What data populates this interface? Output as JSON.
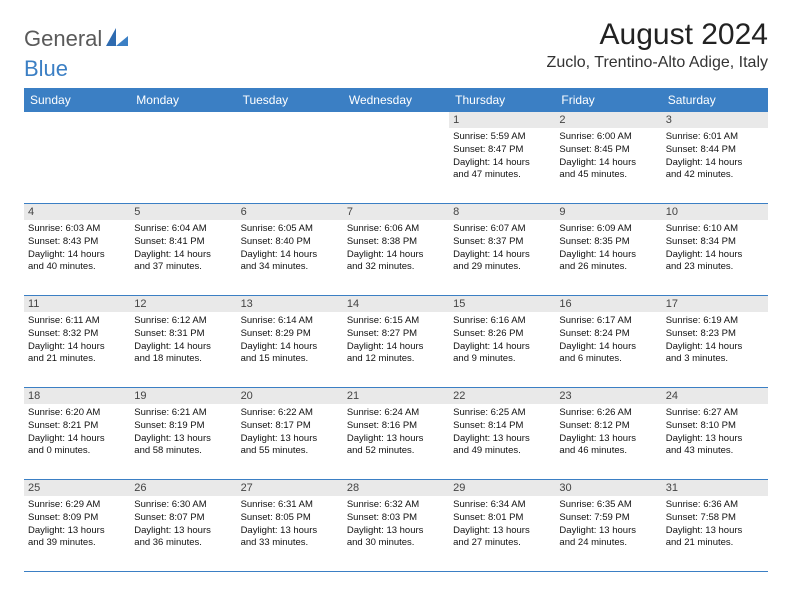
{
  "logo": {
    "word1": "General",
    "word2": "Blue"
  },
  "title": "August 2024",
  "subtitle": "Zuclo, Trentino-Alto Adige, Italy",
  "colors": {
    "header_bg": "#3b7fc4",
    "header_fg": "#ffffff",
    "daynum_bg": "#e9e9e9",
    "border": "#3b7fc4",
    "logo_gray": "#5a5a5a",
    "logo_blue": "#3b7fc4"
  },
  "weekdays": [
    "Sunday",
    "Monday",
    "Tuesday",
    "Wednesday",
    "Thursday",
    "Friday",
    "Saturday"
  ],
  "leading_blanks": 4,
  "days": [
    {
      "n": "1",
      "sunrise": "Sunrise: 5:59 AM",
      "sunset": "Sunset: 8:47 PM",
      "daylight1": "Daylight: 14 hours",
      "daylight2": "and 47 minutes."
    },
    {
      "n": "2",
      "sunrise": "Sunrise: 6:00 AM",
      "sunset": "Sunset: 8:45 PM",
      "daylight1": "Daylight: 14 hours",
      "daylight2": "and 45 minutes."
    },
    {
      "n": "3",
      "sunrise": "Sunrise: 6:01 AM",
      "sunset": "Sunset: 8:44 PM",
      "daylight1": "Daylight: 14 hours",
      "daylight2": "and 42 minutes."
    },
    {
      "n": "4",
      "sunrise": "Sunrise: 6:03 AM",
      "sunset": "Sunset: 8:43 PM",
      "daylight1": "Daylight: 14 hours",
      "daylight2": "and 40 minutes."
    },
    {
      "n": "5",
      "sunrise": "Sunrise: 6:04 AM",
      "sunset": "Sunset: 8:41 PM",
      "daylight1": "Daylight: 14 hours",
      "daylight2": "and 37 minutes."
    },
    {
      "n": "6",
      "sunrise": "Sunrise: 6:05 AM",
      "sunset": "Sunset: 8:40 PM",
      "daylight1": "Daylight: 14 hours",
      "daylight2": "and 34 minutes."
    },
    {
      "n": "7",
      "sunrise": "Sunrise: 6:06 AM",
      "sunset": "Sunset: 8:38 PM",
      "daylight1": "Daylight: 14 hours",
      "daylight2": "and 32 minutes."
    },
    {
      "n": "8",
      "sunrise": "Sunrise: 6:07 AM",
      "sunset": "Sunset: 8:37 PM",
      "daylight1": "Daylight: 14 hours",
      "daylight2": "and 29 minutes."
    },
    {
      "n": "9",
      "sunrise": "Sunrise: 6:09 AM",
      "sunset": "Sunset: 8:35 PM",
      "daylight1": "Daylight: 14 hours",
      "daylight2": "and 26 minutes."
    },
    {
      "n": "10",
      "sunrise": "Sunrise: 6:10 AM",
      "sunset": "Sunset: 8:34 PM",
      "daylight1": "Daylight: 14 hours",
      "daylight2": "and 23 minutes."
    },
    {
      "n": "11",
      "sunrise": "Sunrise: 6:11 AM",
      "sunset": "Sunset: 8:32 PM",
      "daylight1": "Daylight: 14 hours",
      "daylight2": "and 21 minutes."
    },
    {
      "n": "12",
      "sunrise": "Sunrise: 6:12 AM",
      "sunset": "Sunset: 8:31 PM",
      "daylight1": "Daylight: 14 hours",
      "daylight2": "and 18 minutes."
    },
    {
      "n": "13",
      "sunrise": "Sunrise: 6:14 AM",
      "sunset": "Sunset: 8:29 PM",
      "daylight1": "Daylight: 14 hours",
      "daylight2": "and 15 minutes."
    },
    {
      "n": "14",
      "sunrise": "Sunrise: 6:15 AM",
      "sunset": "Sunset: 8:27 PM",
      "daylight1": "Daylight: 14 hours",
      "daylight2": "and 12 minutes."
    },
    {
      "n": "15",
      "sunrise": "Sunrise: 6:16 AM",
      "sunset": "Sunset: 8:26 PM",
      "daylight1": "Daylight: 14 hours",
      "daylight2": "and 9 minutes."
    },
    {
      "n": "16",
      "sunrise": "Sunrise: 6:17 AM",
      "sunset": "Sunset: 8:24 PM",
      "daylight1": "Daylight: 14 hours",
      "daylight2": "and 6 minutes."
    },
    {
      "n": "17",
      "sunrise": "Sunrise: 6:19 AM",
      "sunset": "Sunset: 8:23 PM",
      "daylight1": "Daylight: 14 hours",
      "daylight2": "and 3 minutes."
    },
    {
      "n": "18",
      "sunrise": "Sunrise: 6:20 AM",
      "sunset": "Sunset: 8:21 PM",
      "daylight1": "Daylight: 14 hours",
      "daylight2": "and 0 minutes."
    },
    {
      "n": "19",
      "sunrise": "Sunrise: 6:21 AM",
      "sunset": "Sunset: 8:19 PM",
      "daylight1": "Daylight: 13 hours",
      "daylight2": "and 58 minutes."
    },
    {
      "n": "20",
      "sunrise": "Sunrise: 6:22 AM",
      "sunset": "Sunset: 8:17 PM",
      "daylight1": "Daylight: 13 hours",
      "daylight2": "and 55 minutes."
    },
    {
      "n": "21",
      "sunrise": "Sunrise: 6:24 AM",
      "sunset": "Sunset: 8:16 PM",
      "daylight1": "Daylight: 13 hours",
      "daylight2": "and 52 minutes."
    },
    {
      "n": "22",
      "sunrise": "Sunrise: 6:25 AM",
      "sunset": "Sunset: 8:14 PM",
      "daylight1": "Daylight: 13 hours",
      "daylight2": "and 49 minutes."
    },
    {
      "n": "23",
      "sunrise": "Sunrise: 6:26 AM",
      "sunset": "Sunset: 8:12 PM",
      "daylight1": "Daylight: 13 hours",
      "daylight2": "and 46 minutes."
    },
    {
      "n": "24",
      "sunrise": "Sunrise: 6:27 AM",
      "sunset": "Sunset: 8:10 PM",
      "daylight1": "Daylight: 13 hours",
      "daylight2": "and 43 minutes."
    },
    {
      "n": "25",
      "sunrise": "Sunrise: 6:29 AM",
      "sunset": "Sunset: 8:09 PM",
      "daylight1": "Daylight: 13 hours",
      "daylight2": "and 39 minutes."
    },
    {
      "n": "26",
      "sunrise": "Sunrise: 6:30 AM",
      "sunset": "Sunset: 8:07 PM",
      "daylight1": "Daylight: 13 hours",
      "daylight2": "and 36 minutes."
    },
    {
      "n": "27",
      "sunrise": "Sunrise: 6:31 AM",
      "sunset": "Sunset: 8:05 PM",
      "daylight1": "Daylight: 13 hours",
      "daylight2": "and 33 minutes."
    },
    {
      "n": "28",
      "sunrise": "Sunrise: 6:32 AM",
      "sunset": "Sunset: 8:03 PM",
      "daylight1": "Daylight: 13 hours",
      "daylight2": "and 30 minutes."
    },
    {
      "n": "29",
      "sunrise": "Sunrise: 6:34 AM",
      "sunset": "Sunset: 8:01 PM",
      "daylight1": "Daylight: 13 hours",
      "daylight2": "and 27 minutes."
    },
    {
      "n": "30",
      "sunrise": "Sunrise: 6:35 AM",
      "sunset": "Sunset: 7:59 PM",
      "daylight1": "Daylight: 13 hours",
      "daylight2": "and 24 minutes."
    },
    {
      "n": "31",
      "sunrise": "Sunrise: 6:36 AM",
      "sunset": "Sunset: 7:58 PM",
      "daylight1": "Daylight: 13 hours",
      "daylight2": "and 21 minutes."
    }
  ]
}
